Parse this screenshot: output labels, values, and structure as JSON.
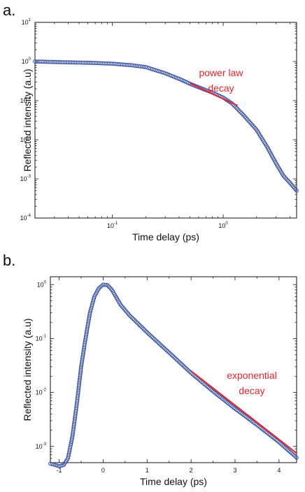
{
  "panels": {
    "a": {
      "letter": "a."
    },
    "b": {
      "letter": "b."
    }
  },
  "chart_data": [
    {
      "id": "a",
      "type": "scatter",
      "title": "",
      "xlabel": "Time delay (ps)",
      "ylabel": "Reflected intensity (a.u)",
      "xscale": "log",
      "yscale": "log",
      "xlim": [
        0.02,
        4.6
      ],
      "ylim": [
        0.0001,
        10
      ],
      "x_ticks": [
        {
          "value": 0.1,
          "base": "10",
          "exp": "-1"
        },
        {
          "value": 1,
          "base": "10",
          "exp": "0"
        }
      ],
      "y_ticks": [
        {
          "value": 0.0001,
          "base": "10",
          "exp": "-4"
        },
        {
          "value": 0.001,
          "base": "10",
          "exp": "-3"
        },
        {
          "value": 0.01,
          "base": "10",
          "exp": "-2"
        },
        {
          "value": 0.1,
          "base": "10",
          "exp": "-1"
        },
        {
          "value": 1,
          "base": "10",
          "exp": "0"
        },
        {
          "value": 10,
          "base": "10",
          "exp": "1"
        }
      ],
      "marker_color": "#3b55a8",
      "fit_color": "#e8242b",
      "keypoints": [
        [
          0.02,
          1.0
        ],
        [
          0.04,
          0.95
        ],
        [
          0.06,
          0.93
        ],
        [
          0.1,
          0.88
        ],
        [
          0.15,
          0.8
        ],
        [
          0.2,
          0.72
        ],
        [
          0.3,
          0.5
        ],
        [
          0.4,
          0.36
        ],
        [
          0.5,
          0.27
        ],
        [
          0.6,
          0.22
        ],
        [
          0.8,
          0.16
        ],
        [
          1.0,
          0.12
        ],
        [
          1.2,
          0.085
        ],
        [
          1.5,
          0.045
        ],
        [
          2.0,
          0.018
        ],
        [
          2.5,
          0.0065
        ],
        [
          3.0,
          0.0025
        ],
        [
          3.5,
          0.0012
        ],
        [
          4.0,
          0.0008
        ],
        [
          4.6,
          0.0005
        ]
      ],
      "annotation": {
        "lines": [
          "power law",
          "decay"
        ]
      },
      "fit": {
        "x": [
          0.5,
          1.35
        ],
        "y": [
          0.28,
          0.075
        ]
      }
    },
    {
      "id": "b",
      "type": "scatter",
      "title": "",
      "xlabel": "Time delay (ps)",
      "ylabel": "Reflected intensity (a.u)",
      "xscale": "linear",
      "yscale": "log",
      "xlim": [
        -1.2,
        4.4
      ],
      "ylim": [
        0.0005,
        1.4
      ],
      "x_ticks": [
        {
          "value": -1,
          "label": "-1"
        },
        {
          "value": 0,
          "label": "0"
        },
        {
          "value": 1,
          "label": "1"
        },
        {
          "value": 2,
          "label": "2"
        },
        {
          "value": 3,
          "label": "3"
        },
        {
          "value": 4,
          "label": "4"
        }
      ],
      "y_ticks": [
        {
          "value": 0.001,
          "base": "10",
          "exp": "-3"
        },
        {
          "value": 0.01,
          "base": "10",
          "exp": "-2"
        },
        {
          "value": 0.1,
          "base": "10",
          "exp": "-1"
        },
        {
          "value": 1,
          "base": "10",
          "exp": "0"
        }
      ],
      "marker_color": "#3b55a8",
      "fit_color": "#e8242b",
      "keypoints": [
        [
          -1.2,
          0.00048
        ],
        [
          -1.0,
          0.00043
        ],
        [
          -0.9,
          0.00045
        ],
        [
          -0.8,
          0.0006
        ],
        [
          -0.7,
          0.0015
        ],
        [
          -0.6,
          0.006
        ],
        [
          -0.5,
          0.03
        ],
        [
          -0.4,
          0.1
        ],
        [
          -0.3,
          0.3
        ],
        [
          -0.2,
          0.6
        ],
        [
          -0.1,
          0.85
        ],
        [
          0.0,
          1.0
        ],
        [
          0.1,
          0.98
        ],
        [
          0.2,
          0.8
        ],
        [
          0.4,
          0.42
        ],
        [
          0.6,
          0.27
        ],
        [
          1.0,
          0.13
        ],
        [
          1.5,
          0.055
        ],
        [
          2.0,
          0.023
        ],
        [
          2.5,
          0.0105
        ],
        [
          3.0,
          0.005
        ],
        [
          3.5,
          0.0025
        ],
        [
          4.0,
          0.0012
        ],
        [
          4.4,
          0.00062
        ]
      ],
      "annotation": {
        "lines": [
          "exponential",
          "decay"
        ]
      },
      "fit": {
        "x": [
          2.0,
          4.4
        ],
        "y": [
          0.025,
          0.00075
        ]
      }
    }
  ]
}
